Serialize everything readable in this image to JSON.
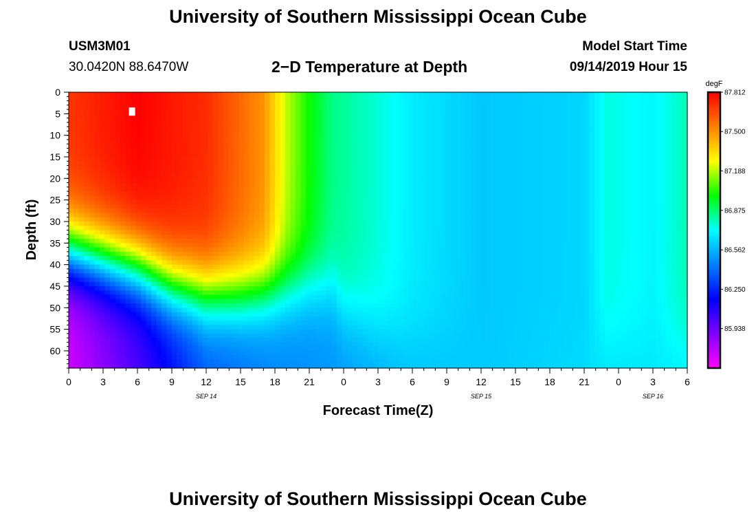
{
  "page": {
    "title": "University of Southern Mississippi Ocean Cube",
    "footer_title": "University of Southern Mississippi Ocean Cube",
    "station_id": "USM3M01",
    "location": "30.0420N 88.6470W",
    "plot_title": "2−D Temperature at Depth",
    "model_start_label": "Model Start Time",
    "model_start_value": "09/14/2019 Hour 15"
  },
  "chart_data": {
    "type": "heatmap",
    "title": "2−D Temperature at Depth",
    "xlabel": "Forecast Time(Z)",
    "ylabel": "Depth (ft)",
    "xlim": [
      0,
      54
    ],
    "ylim": [
      64,
      0
    ],
    "x_ticks": [
      0,
      3,
      6,
      9,
      12,
      15,
      18,
      21,
      24,
      27,
      30,
      33,
      36,
      39,
      42,
      45,
      48,
      51,
      54
    ],
    "x_tick_labels": [
      "0",
      "3",
      "6",
      "9",
      "12",
      "15",
      "18",
      "21",
      "0",
      "3",
      "6",
      "9",
      "12",
      "15",
      "18",
      "21",
      "0",
      "3",
      "6"
    ],
    "y_ticks": [
      0,
      5,
      10,
      15,
      20,
      25,
      30,
      35,
      40,
      45,
      50,
      55,
      60
    ],
    "y_tick_labels": [
      "0",
      "5",
      "10",
      "15",
      "20",
      "25",
      "30",
      "35",
      "40",
      "45",
      "50",
      "55",
      "60"
    ],
    "date_labels": [
      {
        "x": 12,
        "text": "SEP 14"
      },
      {
        "x": 36,
        "text": "SEP 15"
      },
      {
        "x": 51,
        "text": "SEP 16"
      }
    ],
    "colorbar": {
      "unit": "degF",
      "min": 85.625,
      "max": 87.812,
      "tick_values": [
        87.812,
        87.5,
        87.188,
        86.875,
        86.562,
        86.25,
        85.938
      ],
      "tick_labels": [
        "87.812",
        "87.500",
        "87.188",
        "86.875",
        "86.562",
        "86.250",
        "85.938"
      ],
      "colors": [
        "#ff00ff",
        "#8000ff",
        "#0000ff",
        "#0080ff",
        "#00ffff",
        "#00ff00",
        "#ffff00",
        "#ff8000",
        "#ff0000"
      ]
    },
    "field_description": {
      "thermocline_depth_ft": [
        [
          0,
          41
        ],
        [
          3,
          43
        ],
        [
          6,
          45
        ],
        [
          9,
          49
        ],
        [
          12,
          51
        ],
        [
          15,
          51
        ],
        [
          18,
          50
        ],
        [
          21,
          49
        ],
        [
          23,
          50
        ],
        [
          24,
          55
        ],
        [
          27,
          59
        ],
        [
          30,
          62
        ]
      ],
      "surface_temperature_degF": [
        [
          0,
          87.7
        ],
        [
          6,
          87.81
        ],
        [
          12,
          87.72
        ],
        [
          17,
          87.5
        ],
        [
          19,
          87.2
        ],
        [
          21,
          87.0
        ],
        [
          23,
          86.85
        ],
        [
          27,
          86.76
        ],
        [
          30,
          86.68
        ],
        [
          36,
          86.6
        ],
        [
          45,
          86.63
        ],
        [
          47,
          86.75
        ],
        [
          51,
          86.7
        ],
        [
          54,
          86.8
        ]
      ],
      "bottom_temperature_degF": [
        [
          0,
          85.72
        ],
        [
          6,
          86.0
        ],
        [
          12,
          86.35
        ],
        [
          18,
          86.45
        ],
        [
          24,
          86.5
        ],
        [
          30,
          86.58
        ],
        [
          54,
          86.68
        ]
      ]
    },
    "markers": [
      {
        "label": "white-marker",
        "x": 5.5,
        "y": 4.5
      }
    ]
  }
}
